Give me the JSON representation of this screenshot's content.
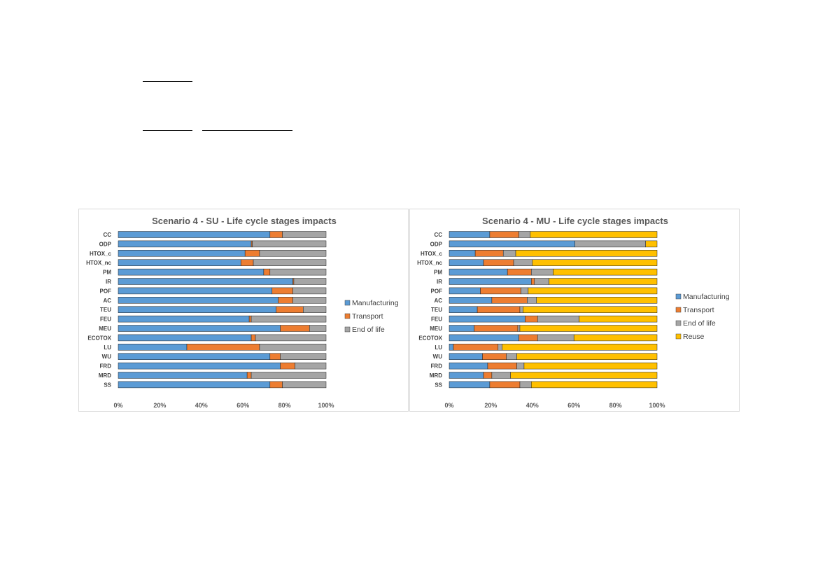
{
  "colors": {
    "Manufacturing": "#5b9bd5",
    "Transport": "#ed7d31",
    "End of life": "#a5a5a5",
    "Reuse": "#ffc000"
  },
  "chart_data": [
    {
      "type": "bar",
      "orientation": "horizontal",
      "stacked": "percent",
      "title": "Scenario 4 - SU - Life cycle stages impacts",
      "categories": [
        "CC",
        "ODP",
        "HTOX_c",
        "HTOX_nc",
        "PM",
        "IR",
        "POF",
        "AC",
        "TEU",
        "FEU",
        "MEU",
        "ECOTOX",
        "LU",
        "WU",
        "FRD",
        "MRD",
        "SS"
      ],
      "series": [
        {
          "name": "Manufacturing",
          "values": [
            73,
            64,
            61,
            59,
            70,
            84,
            74,
            77,
            76,
            63,
            78,
            64,
            33,
            73,
            78,
            62,
            73
          ]
        },
        {
          "name": "Transport",
          "values": [
            6,
            0.5,
            7,
            6,
            3,
            0.5,
            10,
            7,
            13,
            1,
            14,
            2,
            35,
            5,
            7,
            2,
            6
          ]
        },
        {
          "name": "End of life",
          "values": [
            21,
            35.5,
            32,
            35,
            27,
            15.5,
            16,
            16,
            11,
            36,
            8,
            34,
            32,
            22,
            15,
            36,
            21
          ]
        }
      ],
      "xlim": [
        0,
        100
      ],
      "xticks": [
        "0%",
        "20%",
        "40%",
        "60%",
        "80%",
        "100%"
      ],
      "legend": "right",
      "grid": false
    },
    {
      "type": "bar",
      "orientation": "horizontal",
      "stacked": "percent",
      "title": "Scenario 4 - MU - Life cycle stages impacts",
      "categories": [
        "CC",
        "ODP",
        "HTOX_c",
        "HTOX_nc",
        "PM",
        "IR",
        "POF",
        "AC",
        "TEU",
        "FEU",
        "MEU",
        "ECOTOX",
        "LU",
        "WU",
        "FRD",
        "MRD",
        "SS"
      ],
      "series": [
        {
          "name": "Manufacturing",
          "values": [
            19.5,
            60.5,
            12.5,
            16.5,
            28,
            39.5,
            15,
            20.5,
            13.5,
            36.5,
            12,
            33.5,
            2,
            16,
            18.5,
            16.5,
            19.5
          ]
        },
        {
          "name": "Transport",
          "values": [
            14,
            0,
            13.5,
            14.5,
            11.5,
            1.5,
            19.5,
            17,
            20.5,
            6,
            21,
            9,
            21.5,
            11.5,
            14,
            4,
            14.5
          ]
        },
        {
          "name": "End of life",
          "values": [
            5.5,
            34,
            6,
            9,
            10.5,
            7,
            3.5,
            4.5,
            1.5,
            20,
            1,
            17.5,
            2,
            5,
            3.5,
            9,
            5.5
          ]
        },
        {
          "name": "Reuse",
          "values": [
            61,
            5.5,
            68,
            60,
            50,
            52,
            62,
            58,
            64.5,
            37.5,
            66,
            40,
            74.5,
            67.5,
            64,
            70.5,
            60.5
          ]
        }
      ],
      "xlim": [
        0,
        100
      ],
      "xticks": [
        "0%",
        "20%",
        "40%",
        "60%",
        "80%",
        "100%"
      ],
      "legend": "right",
      "grid": false
    }
  ]
}
